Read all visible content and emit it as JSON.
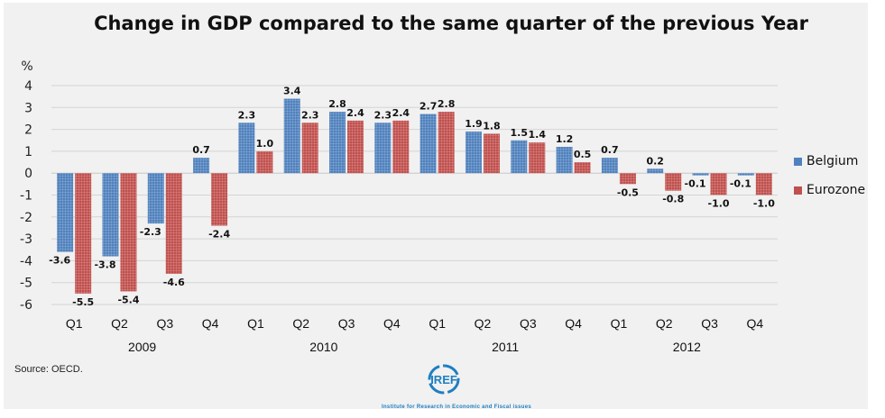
{
  "chart_data": {
    "type": "bar",
    "title": "Change in GDP compared to the same quarter of the previous Year",
    "ylabel": "%",
    "xlabel": "",
    "ylim": [
      -6,
      4
    ],
    "yticks": [
      4,
      3,
      2,
      1,
      0,
      -1,
      -2,
      -3,
      -4,
      -5,
      -6
    ],
    "grid": true,
    "legend_position": "right",
    "categories": [
      "Q1",
      "Q2",
      "Q3",
      "Q4",
      "Q1",
      "Q2",
      "Q3",
      "Q4",
      "Q1",
      "Q2",
      "Q3",
      "Q4",
      "Q1",
      "Q2",
      "Q3",
      "Q4"
    ],
    "years": [
      {
        "label": "2009",
        "quarters": 4
      },
      {
        "label": "2010",
        "quarters": 4
      },
      {
        "label": "2011",
        "quarters": 4
      },
      {
        "label": "2012",
        "quarters": 4
      }
    ],
    "series": [
      {
        "name": "Belgium",
        "color": "#4f81bd",
        "values": [
          -3.6,
          -3.8,
          -2.3,
          0.7,
          2.3,
          3.4,
          2.8,
          2.3,
          2.7,
          1.9,
          1.5,
          1.2,
          0.7,
          0.2,
          -0.1,
          -0.1
        ]
      },
      {
        "name": "Eurozone",
        "color": "#c0504d",
        "values": [
          -5.5,
          -5.4,
          -4.6,
          -2.4,
          1.0,
          2.3,
          2.4,
          2.4,
          2.8,
          1.8,
          1.4,
          0.5,
          -0.5,
          -0.8,
          -1.0,
          -1.0
        ]
      }
    ]
  },
  "source": "Source: OECD.",
  "logo": {
    "text": "IREF",
    "subtitle": "Institute for Research in Economic and Fiscal issues"
  }
}
